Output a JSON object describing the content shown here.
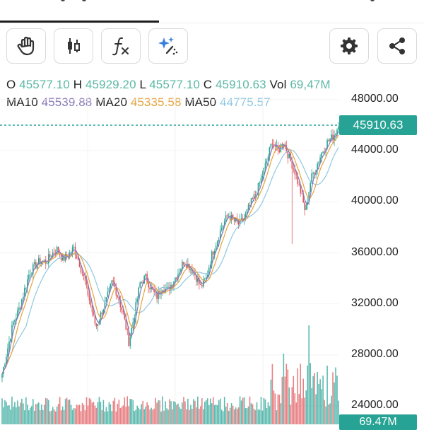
{
  "toolbar": {
    "buttons": [
      {
        "icon": "hand-pan-icon"
      },
      {
        "icon": "candlestick-icon"
      },
      {
        "icon": "function-icon"
      },
      {
        "icon": "sparkle-magic-icon"
      },
      {
        "icon": "gear-icon"
      },
      {
        "icon": "share-icon"
      }
    ]
  },
  "ohlc": {
    "open_label": "O",
    "open_value": "45577.10",
    "high_label": "H",
    "high_value": "45929.20",
    "low_label": "L",
    "low_value": "45577.10",
    "close_label": "C",
    "close_value": "45910.63",
    "vol_label": "Vol",
    "vol_value": "69,47M"
  },
  "ma": {
    "ma10_label": "MA10",
    "ma10_value": "45539.88",
    "ma20_label": "MA20",
    "ma20_value": "45335.58",
    "ma50_label": "MA50",
    "ma50_value": "44775.57"
  },
  "colors": {
    "up": "#26a394",
    "down": "#e0575b",
    "ma10": "#8878b6",
    "ma20": "#e6a23c",
    "ma50": "#8fc7e0",
    "last_price_tag": "#26a394"
  },
  "chart_data": {
    "type": "candlestick",
    "y_ticks": [
      "48000.00",
      "44000.00",
      "40000.00",
      "36000.00",
      "32000.00",
      "28000.00",
      "24000.00"
    ],
    "ylim": [
      24000,
      48000
    ],
    "last_price": "45910.63",
    "last_volume": "69.47M",
    "close_series": [
      26500,
      28500,
      30500,
      31500,
      33000,
      34500,
      35000,
      35400,
      35300,
      35900,
      36300,
      35500,
      35800,
      36400,
      35200,
      33800,
      32000,
      30200,
      31300,
      32400,
      33800,
      32600,
      31100,
      29000,
      31200,
      33600,
      34100,
      33200,
      32500,
      33400,
      33000,
      33800,
      34500,
      35400,
      34900,
      34300,
      33300,
      34000,
      35800,
      37000,
      38200,
      39000,
      38500,
      38200,
      38800,
      39800,
      40600,
      41800,
      43200,
      44800,
      43900,
      44800,
      43500,
      42500,
      41000,
      39200,
      41800,
      42800,
      43900,
      44700,
      45100,
      45910
    ]
  }
}
